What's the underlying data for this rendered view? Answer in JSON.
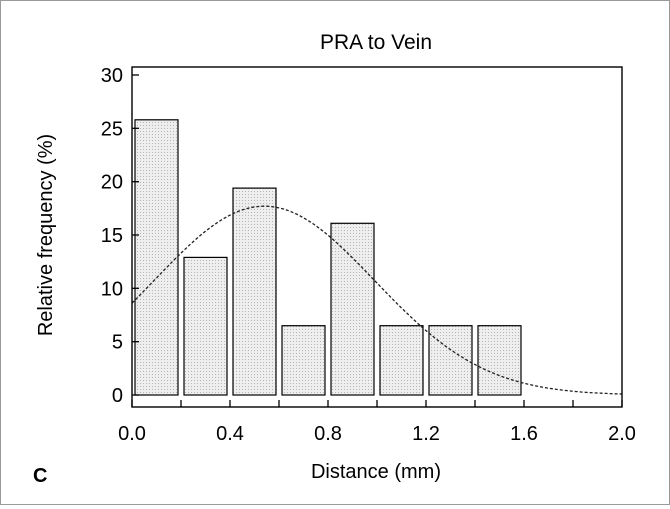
{
  "panel_label": "C",
  "chart_data": {
    "type": "bar",
    "title": "PRA to Vein",
    "xlabel": "Distance (mm)",
    "ylabel": "Relative frequency (%)",
    "xlim": [
      0.0,
      2.0
    ],
    "ylim": [
      0,
      31
    ],
    "x_ticks": [
      "0.0",
      "0.4",
      "0.8",
      "1.2",
      "1.6",
      "2.0"
    ],
    "y_ticks": [
      "0",
      "5",
      "10",
      "15",
      "20",
      "25",
      "30"
    ],
    "bin_width": 0.2,
    "bins": [
      {
        "start": 0.0,
        "end": 0.2,
        "value": 25.8
      },
      {
        "start": 0.2,
        "end": 0.4,
        "value": 12.9
      },
      {
        "start": 0.4,
        "end": 0.6,
        "value": 19.4
      },
      {
        "start": 0.6,
        "end": 0.8,
        "value": 6.5
      },
      {
        "start": 0.8,
        "end": 1.0,
        "value": 16.1
      },
      {
        "start": 1.0,
        "end": 1.2,
        "value": 6.5
      },
      {
        "start": 1.2,
        "end": 1.4,
        "value": 6.5
      },
      {
        "start": 1.4,
        "end": 1.6,
        "value": 6.5
      }
    ],
    "fit_curve": {
      "type": "normal",
      "mean": 0.54,
      "peak": 17.7,
      "sd": 0.45,
      "style": "dashed"
    },
    "bar_fill": "#ececec",
    "bar_stroke": "#000000",
    "grid": false,
    "legend": "none"
  }
}
